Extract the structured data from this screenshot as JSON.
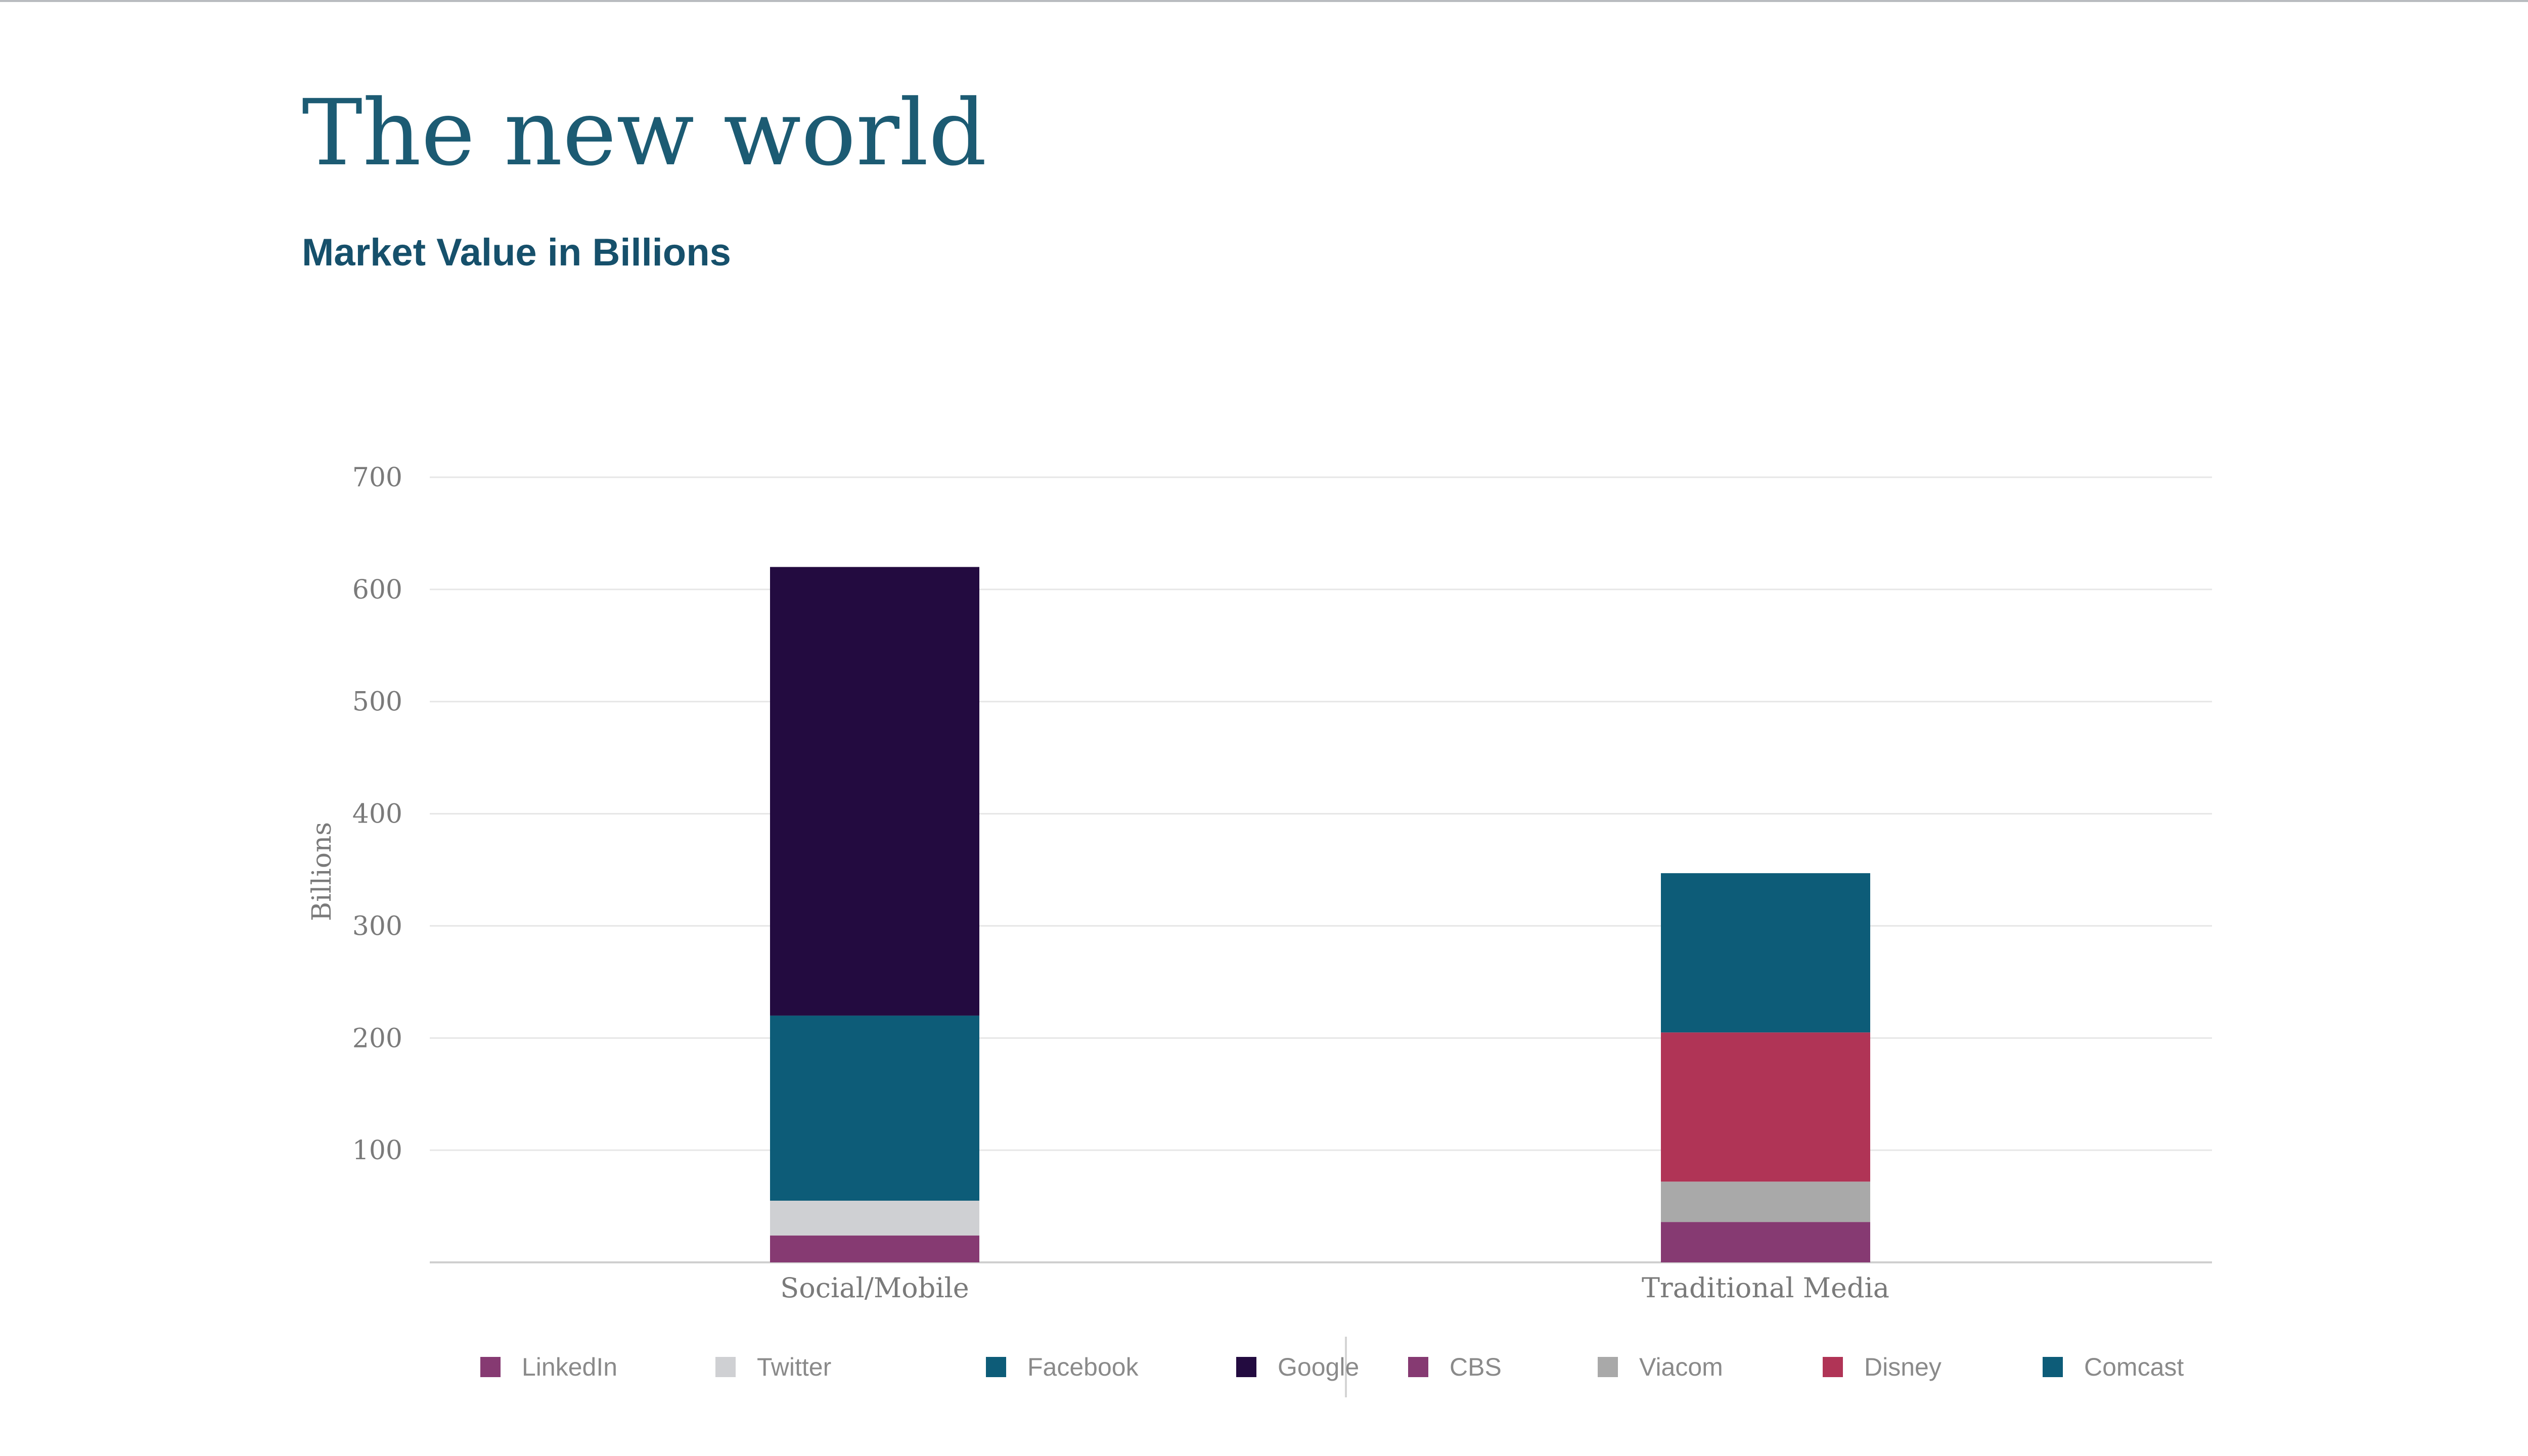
{
  "slide": {
    "title": "The new world",
    "subtitle": "Market Value in Billions"
  },
  "chart_data": {
    "type": "bar",
    "stacked": true,
    "categories": [
      "Social/Mobile",
      "Traditional Media"
    ],
    "ylabel": "Billions",
    "xlabel": "",
    "ylim": [
      0,
      700
    ],
    "yticks": [
      100,
      200,
      300,
      400,
      500,
      600,
      700
    ],
    "grid": true,
    "legend_position": "bottom",
    "series": [
      {
        "name": "LinkedIn",
        "color": "#863a72",
        "values": [
          24,
          0
        ]
      },
      {
        "name": "Twitter",
        "color": "#cfd0d3",
        "values": [
          31,
          0
        ]
      },
      {
        "name": "Facebook",
        "color": "#0d5c78",
        "values": [
          165,
          0
        ]
      },
      {
        "name": "Google",
        "color": "#230b40",
        "values": [
          400,
          0
        ]
      },
      {
        "name": "CBS",
        "color": "#863a72",
        "values": [
          0,
          36
        ]
      },
      {
        "name": "Viacom",
        "color": "#a9a9a9",
        "values": [
          0,
          36
        ]
      },
      {
        "name": "Disney",
        "color": "#b03456",
        "values": [
          0,
          133
        ]
      },
      {
        "name": "Comcast",
        "color": "#0d5c78",
        "values": [
          0,
          142
        ]
      }
    ]
  }
}
